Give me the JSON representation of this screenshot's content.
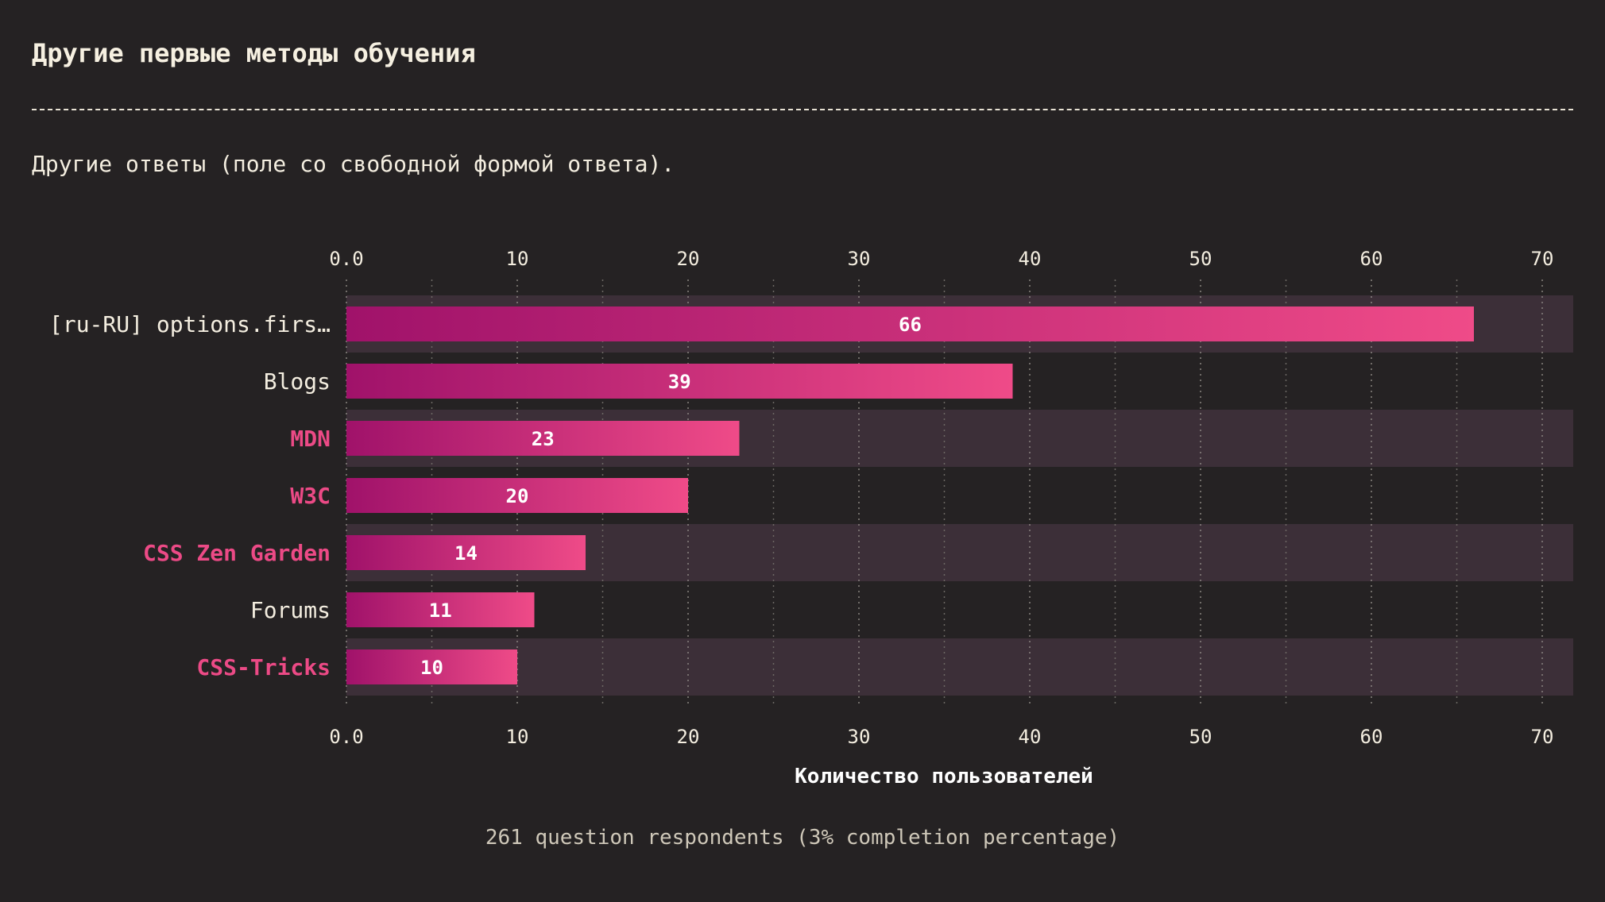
{
  "page": {
    "title": "Другие первые методы обучения",
    "subtitle": "Другие ответы (поле со свободной формой ответа).",
    "footnote": "261 question respondents (3% completion percentage)"
  },
  "colors": {
    "background": "#252223",
    "row_band": "#3c2f38",
    "bar_start": "#a0126a",
    "bar_end": "#ef4b88",
    "highlight_label": "#ec4a86",
    "text": "#f4eee0"
  },
  "chart_data": {
    "type": "bar",
    "orientation": "horizontal",
    "categories": [
      "[ru-RU] options.firs…",
      "Blogs",
      "MDN",
      "W3C",
      "CSS Zen Garden",
      "Forums",
      "CSS-Tricks"
    ],
    "highlighted": [
      false,
      false,
      true,
      true,
      true,
      false,
      true
    ],
    "values": [
      66,
      39,
      23,
      20,
      14,
      11,
      10
    ],
    "xlabel": "Количество пользователей",
    "xlim": [
      0,
      72
    ],
    "ticks": [
      "0.0",
      "10",
      "20",
      "30",
      "40",
      "50",
      "60",
      "70"
    ],
    "tick_values": [
      0,
      10,
      20,
      30,
      40,
      50,
      60,
      70
    ],
    "minor_tick_values": [
      5,
      15,
      25,
      35,
      45,
      55,
      65
    ],
    "grid": true,
    "axis_position": "top-and-bottom"
  }
}
